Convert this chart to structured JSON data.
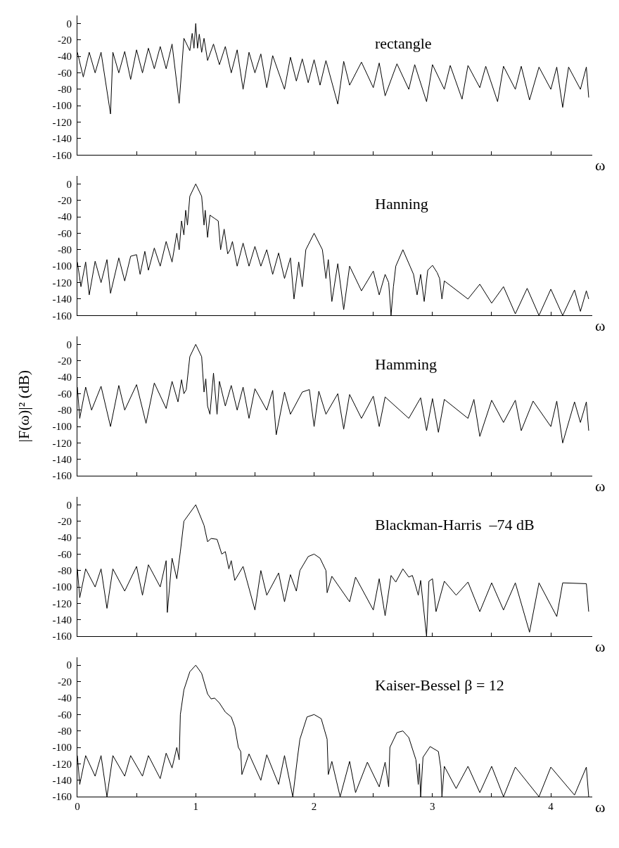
{
  "chart_data": [
    {
      "type": "line",
      "annotations": [
        "rectangle"
      ],
      "xlabel": "ω",
      "color": "#000000",
      "xlim": [
        0,
        4.35
      ],
      "ylim": [
        -160,
        10
      ],
      "tick_labels": "y",
      "xticks": [
        {
          "value": 0,
          "label": null
        },
        {
          "value": 0.5,
          "label": null
        },
        {
          "value": 1,
          "label": null
        },
        {
          "value": 1.5,
          "label": null
        },
        {
          "value": 2,
          "label": null
        },
        {
          "value": 2.5,
          "label": null
        },
        {
          "value": 3,
          "label": null
        },
        {
          "value": 3.5,
          "label": null
        },
        {
          "value": 4,
          "label": null
        }
      ],
      "yticks": [
        -160,
        -140,
        -120,
        -100,
        -80,
        -60,
        -40,
        -20,
        0
      ],
      "x": [
        0,
        0.05,
        0.1,
        0.15,
        0.2,
        0.28,
        0.3,
        0.35,
        0.4,
        0.45,
        0.5,
        0.55,
        0.6,
        0.65,
        0.7,
        0.75,
        0.8,
        0.86,
        0.9,
        0.95,
        0.97,
        0.985,
        1.0,
        1.015,
        1.03,
        1.05,
        1.07,
        1.1,
        1.15,
        1.2,
        1.25,
        1.3,
        1.35,
        1.4,
        1.45,
        1.5,
        1.55,
        1.6,
        1.65,
        1.75,
        1.8,
        1.85,
        1.9,
        1.95,
        2.0,
        2.05,
        2.1,
        2.2,
        2.25,
        2.3,
        2.4,
        2.5,
        2.55,
        2.6,
        2.7,
        2.8,
        2.85,
        2.95,
        3.0,
        3.1,
        3.15,
        3.25,
        3.3,
        3.4,
        3.45,
        3.55,
        3.6,
        3.7,
        3.75,
        3.82,
        3.9,
        4.0,
        4.05,
        4.1,
        4.15,
        4.25,
        4.3,
        4.32
      ],
      "values": [
        -35,
        -65,
        -35,
        -60,
        -35,
        -110,
        -35,
        -60,
        -34,
        -68,
        -32,
        -60,
        -30,
        -55,
        -28,
        -55,
        -25,
        -97,
        -18,
        -33,
        -12,
        -30,
        0,
        -30,
        -13,
        -35,
        -18,
        -45,
        -25,
        -50,
        -28,
        -60,
        -32,
        -80,
        -35,
        -60,
        -37,
        -78,
        -39,
        -80,
        -41,
        -70,
        -43,
        -72,
        -44,
        -75,
        -45,
        -98,
        -46,
        -75,
        -47,
        -78,
        -48,
        -88,
        -49,
        -80,
        -50,
        -95,
        -50,
        -80,
        -51,
        -92,
        -51,
        -78,
        -52,
        -95,
        -52,
        -80,
        -52,
        -93,
        -53,
        -80,
        -53,
        -102,
        -53,
        -80,
        -53,
        -90
      ]
    },
    {
      "type": "line",
      "annotations": [
        "Hanning"
      ],
      "xlabel": "ω",
      "color": "#000000",
      "xlim": [
        0,
        4.35
      ],
      "ylim": [
        -160,
        10
      ],
      "tick_labels": "y",
      "xticks": [
        {
          "value": 0,
          "label": null
        },
        {
          "value": 0.5,
          "label": null
        },
        {
          "value": 1,
          "label": null
        },
        {
          "value": 1.5,
          "label": null
        },
        {
          "value": 2,
          "label": null
        },
        {
          "value": 2.5,
          "label": null
        },
        {
          "value": 3,
          "label": null
        },
        {
          "value": 3.5,
          "label": null
        },
        {
          "value": 4,
          "label": null
        }
      ],
      "yticks": [
        -160,
        -140,
        -120,
        -100,
        -80,
        -60,
        -40,
        -20,
        0
      ],
      "x": [
        0,
        0.03,
        0.07,
        0.1,
        0.15,
        0.2,
        0.25,
        0.28,
        0.35,
        0.4,
        0.45,
        0.5,
        0.53,
        0.57,
        0.6,
        0.65,
        0.7,
        0.75,
        0.8,
        0.84,
        0.86,
        0.88,
        0.9,
        0.915,
        0.93,
        0.95,
        1.0,
        1.05,
        1.07,
        1.08,
        1.1,
        1.12,
        1.16,
        1.19,
        1.21,
        1.24,
        1.27,
        1.29,
        1.31,
        1.35,
        1.4,
        1.45,
        1.5,
        1.55,
        1.6,
        1.65,
        1.7,
        1.75,
        1.8,
        1.83,
        1.87,
        1.9,
        1.93,
        2.0,
        2.07,
        2.1,
        2.12,
        2.15,
        2.2,
        2.25,
        2.3,
        2.4,
        2.5,
        2.55,
        2.6,
        2.63,
        2.65,
        2.67,
        2.69,
        2.75,
        2.81,
        2.84,
        2.87,
        2.9,
        2.93,
        2.96,
        3.0,
        3.04,
        3.06,
        3.08,
        3.1,
        3.3,
        3.4,
        3.5,
        3.6,
        3.7,
        3.8,
        3.9,
        4.0,
        4.1,
        4.2,
        4.25,
        4.3,
        4.32
      ],
      "values": [
        -95,
        -125,
        -95,
        -135,
        -94,
        -120,
        -92,
        -133,
        -90,
        -118,
        -88,
        -86,
        -110,
        -82,
        -105,
        -78,
        -100,
        -70,
        -95,
        -60,
        -80,
        -45,
        -62,
        -32,
        -50,
        -15,
        0,
        -15,
        -50,
        -32,
        -65,
        -38,
        -42,
        -45,
        -80,
        -55,
        -85,
        -80,
        -70,
        -100,
        -72,
        -100,
        -76,
        -100,
        -80,
        -110,
        -84,
        -115,
        -90,
        -140,
        -95,
        -125,
        -80,
        -60,
        -80,
        -115,
        -92,
        -143,
        -97,
        -153,
        -100,
        -130,
        -106,
        -135,
        -110,
        -120,
        -160,
        -125,
        -100,
        -80,
        -100,
        -110,
        -135,
        -110,
        -143,
        -105,
        -99,
        -108,
        -115,
        -140,
        -118,
        -140,
        -122,
        -145,
        -125,
        -158,
        -127,
        -160,
        -128,
        -160,
        -129,
        -155,
        -130,
        -140
      ]
    },
    {
      "type": "line",
      "annotations": [
        "Hamming"
      ],
      "xlabel": "ω",
      "ylabel": "|F(ω)|² (dB)",
      "color": "#000000",
      "xlim": [
        0,
        4.35
      ],
      "ylim": [
        -160,
        10
      ],
      "tick_labels": "y",
      "xticks": [
        {
          "value": 0,
          "label": null
        },
        {
          "value": 0.5,
          "label": null
        },
        {
          "value": 1,
          "label": null
        },
        {
          "value": 1.5,
          "label": null
        },
        {
          "value": 2,
          "label": null
        },
        {
          "value": 2.5,
          "label": null
        },
        {
          "value": 3,
          "label": null
        },
        {
          "value": 3.5,
          "label": null
        },
        {
          "value": 4,
          "label": null
        }
      ],
      "yticks": [
        -160,
        -140,
        -120,
        -100,
        -80,
        -60,
        -40,
        -20,
        0
      ],
      "x": [
        0,
        0.02,
        0.07,
        0.12,
        0.2,
        0.28,
        0.35,
        0.4,
        0.5,
        0.58,
        0.65,
        0.75,
        0.8,
        0.85,
        0.88,
        0.9,
        0.92,
        0.95,
        1.0,
        1.05,
        1.07,
        1.085,
        1.1,
        1.12,
        1.15,
        1.18,
        1.2,
        1.25,
        1.3,
        1.35,
        1.4,
        1.45,
        1.5,
        1.6,
        1.65,
        1.68,
        1.75,
        1.8,
        1.9,
        1.96,
        2.0,
        2.04,
        2.1,
        2.2,
        2.25,
        2.3,
        2.4,
        2.5,
        2.55,
        2.6,
        2.8,
        2.9,
        2.95,
        3.0,
        3.05,
        3.1,
        3.3,
        3.35,
        3.4,
        3.5,
        3.6,
        3.7,
        3.75,
        3.85,
        4.0,
        4.05,
        4.1,
        4.2,
        4.25,
        4.3,
        4.32
      ],
      "values": [
        -52,
        -90,
        -52,
        -80,
        -51,
        -100,
        -50,
        -80,
        -49,
        -96,
        -47,
        -78,
        -45,
        -70,
        -43,
        -60,
        -55,
        -15,
        0,
        -15,
        -58,
        -42,
        -75,
        -85,
        -35,
        -85,
        -45,
        -75,
        -50,
        -80,
        -52,
        -90,
        -54,
        -80,
        -56,
        -110,
        -58,
        -85,
        -58,
        -55,
        -100,
        -57,
        -85,
        -60,
        -103,
        -61,
        -90,
        -63,
        -100,
        -64,
        -90,
        -65,
        -105,
        -66,
        -107,
        -67,
        -90,
        -67,
        -112,
        -68,
        -95,
        -68,
        -105,
        -69,
        -100,
        -69,
        -120,
        -70,
        -95,
        -70,
        -105
      ]
    },
    {
      "type": "line",
      "annotations": [
        "Blackman-Harris  –74 dB"
      ],
      "xlabel": "ω",
      "color": "#000000",
      "xlim": [
        0,
        4.35
      ],
      "ylim": [
        -160,
        10
      ],
      "tick_labels": "y",
      "xticks": [
        {
          "value": 0,
          "label": null
        },
        {
          "value": 0.5,
          "label": null
        },
        {
          "value": 1,
          "label": null
        },
        {
          "value": 1.5,
          "label": null
        },
        {
          "value": 2,
          "label": null
        },
        {
          "value": 2.5,
          "label": null
        },
        {
          "value": 3,
          "label": null
        },
        {
          "value": 3.5,
          "label": null
        },
        {
          "value": 4,
          "label": null
        }
      ],
      "yticks": [
        -160,
        -140,
        -120,
        -100,
        -80,
        -60,
        -40,
        -20,
        0
      ],
      "x": [
        0,
        0.02,
        0.07,
        0.15,
        0.2,
        0.25,
        0.3,
        0.4,
        0.5,
        0.55,
        0.6,
        0.7,
        0.75,
        0.76,
        0.8,
        0.84,
        0.87,
        0.9,
        1.0,
        1.07,
        1.1,
        1.13,
        1.18,
        1.22,
        1.25,
        1.28,
        1.3,
        1.33,
        1.4,
        1.5,
        1.55,
        1.6,
        1.7,
        1.75,
        1.8,
        1.85,
        1.88,
        1.95,
        2.0,
        2.05,
        2.1,
        2.11,
        2.15,
        2.3,
        2.35,
        2.5,
        2.55,
        2.6,
        2.65,
        2.69,
        2.75,
        2.8,
        2.83,
        2.85,
        2.88,
        2.9,
        2.95,
        2.97,
        3.0,
        3.03,
        3.1,
        3.2,
        3.3,
        3.4,
        3.5,
        3.6,
        3.7,
        3.82,
        3.9,
        4.05,
        4.1,
        4.3,
        4.32
      ],
      "values": [
        -78,
        -113,
        -78,
        -100,
        -78,
        -126,
        -78,
        -105,
        -75,
        -110,
        -73,
        -100,
        -68,
        -131,
        -65,
        -90,
        -57,
        -20,
        0,
        -25,
        -45,
        -41,
        -42,
        -60,
        -57,
        -78,
        -68,
        -92,
        -75,
        -128,
        -80,
        -110,
        -83,
        -118,
        -85,
        -105,
        -80,
        -63,
        -60,
        -65,
        -80,
        -107,
        -87,
        -118,
        -88,
        -128,
        -90,
        -135,
        -86,
        -94,
        -78,
        -88,
        -86,
        -95,
        -110,
        -92,
        -160,
        -93,
        -90,
        -130,
        -93,
        -110,
        -94,
        -130,
        -95,
        -128,
        -95,
        -155,
        -95,
        -136,
        -95,
        -96,
        -130
      ]
    },
    {
      "type": "line",
      "annotations": [
        "Kaiser-Bessel β = 12"
      ],
      "xlabel": "ω",
      "color": "#000000",
      "xlim": [
        0,
        4.35
      ],
      "ylim": [
        -160,
        10
      ],
      "xticks": [
        0,
        {
          "value": 0.5,
          "label": null
        },
        1,
        {
          "value": 1.5,
          "label": null
        },
        2,
        {
          "value": 2.5,
          "label": null
        },
        3,
        {
          "value": 3.5,
          "label": null
        },
        4
      ],
      "yticks": [
        -160,
        -140,
        -120,
        -100,
        -80,
        -60,
        -40,
        -20,
        0
      ],
      "x": [
        0,
        0.02,
        0.07,
        0.15,
        0.2,
        0.25,
        0.3,
        0.4,
        0.45,
        0.55,
        0.6,
        0.7,
        0.75,
        0.8,
        0.84,
        0.86,
        0.87,
        0.9,
        0.95,
        1.0,
        1.05,
        1.1,
        1.13,
        1.16,
        1.2,
        1.25,
        1.3,
        1.33,
        1.36,
        1.38,
        1.39,
        1.45,
        1.55,
        1.6,
        1.7,
        1.75,
        1.82,
        1.86,
        1.88,
        1.94,
        2.0,
        2.06,
        2.11,
        2.12,
        2.15,
        2.22,
        2.3,
        2.35,
        2.45,
        2.55,
        2.6,
        2.63,
        2.64,
        2.7,
        2.75,
        2.8,
        2.86,
        2.88,
        2.89,
        2.9,
        2.92,
        2.98,
        3.05,
        3.07,
        3.08,
        3.1,
        3.2,
        3.3,
        3.4,
        3.5,
        3.6,
        3.7,
        3.9,
        4.0,
        4.2,
        4.3,
        4.32
      ],
      "values": [
        -110,
        -145,
        -110,
        -135,
        -110,
        -160,
        -110,
        -135,
        -110,
        -135,
        -110,
        -138,
        -107,
        -125,
        -100,
        -115,
        -60,
        -30,
        -8,
        0,
        -10,
        -35,
        -41,
        -40,
        -46,
        -57,
        -63,
        -75,
        -100,
        -105,
        -133,
        -108,
        -140,
        -109,
        -145,
        -110,
        -160,
        -112,
        -90,
        -63,
        -60,
        -65,
        -90,
        -133,
        -117,
        -160,
        -117,
        -155,
        -118,
        -148,
        -118,
        -148,
        -100,
        -82,
        -80,
        -88,
        -115,
        -145,
        -120,
        -160,
        -112,
        -99,
        -105,
        -125,
        -160,
        -123,
        -150,
        -123,
        -155,
        -123,
        -160,
        -124,
        -160,
        -124,
        -158,
        -124,
        -160
      ]
    }
  ]
}
